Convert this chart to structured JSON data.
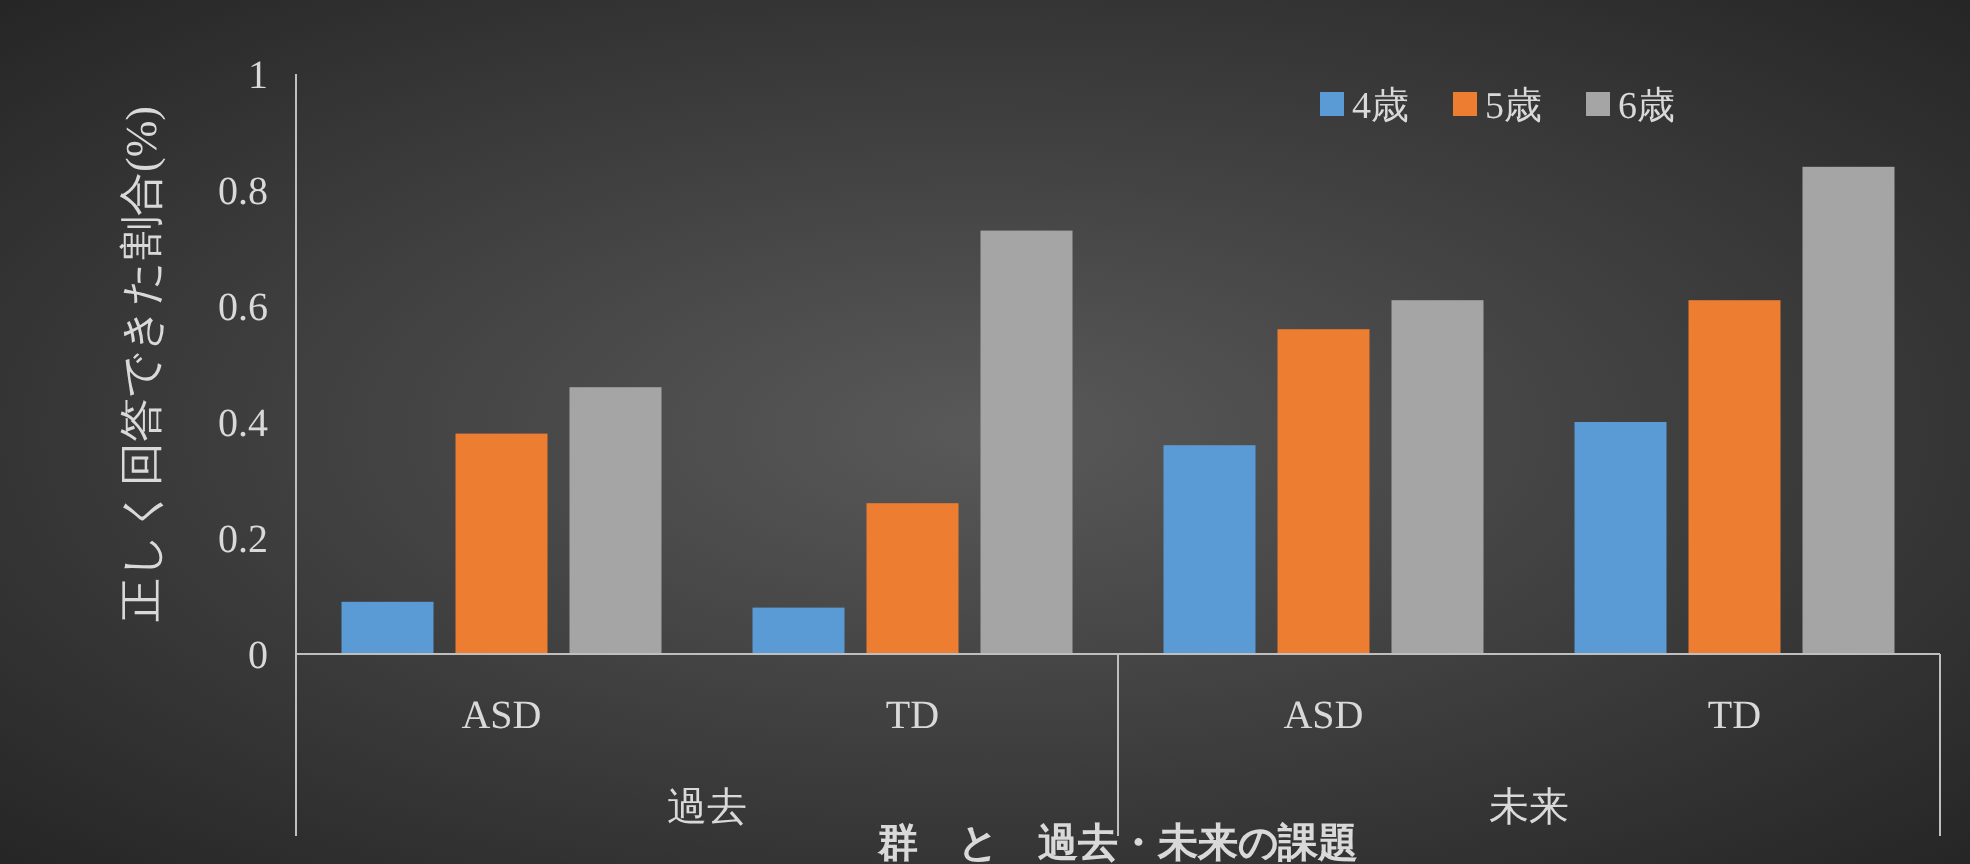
{
  "chart_data": {
    "type": "bar",
    "ylabel": "正しく回答できた割合(%)",
    "xlabel": "群　と　過去・未来の課題",
    "categories": [
      "ASD",
      "TD",
      "ASD",
      "TD"
    ],
    "annotations": [
      "過去",
      "未来"
    ],
    "series": [
      {
        "name": "4歳",
        "color": "#5b9bd5",
        "values": [
          0.09,
          0.08,
          0.36,
          0.4
        ]
      },
      {
        "name": "5歳",
        "color": "#ed7d31",
        "values": [
          0.38,
          0.26,
          0.56,
          0.61
        ]
      },
      {
        "name": "6歳",
        "color": "#a5a5a5",
        "values": [
          0.46,
          0.73,
          0.61,
          0.84
        ]
      }
    ],
    "ylim": [
      0,
      1
    ],
    "yticks": [
      0,
      0.2,
      0.4,
      0.6,
      0.8,
      1
    ],
    "legend": "top right"
  }
}
